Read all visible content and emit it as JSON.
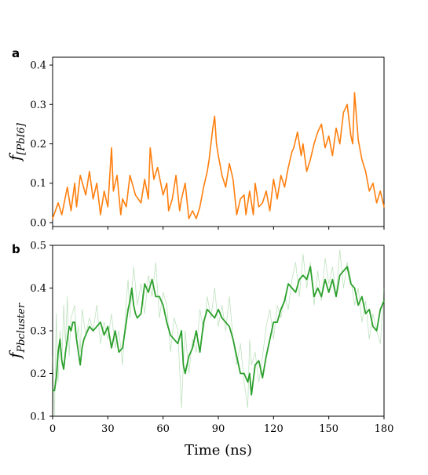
{
  "chart_data": [
    {
      "panel": "a",
      "type": "line",
      "ylabel_main": "f",
      "ylabel_sub": "[PbI6]",
      "xlim": [
        0,
        180
      ],
      "ylim": [
        -0.01,
        0.42
      ],
      "yticks": [
        0.0,
        0.1,
        0.2,
        0.3,
        0.4
      ],
      "ytick_labels": [
        "0.0",
        "0.1",
        "0.2",
        "0.3",
        "0.4"
      ],
      "grid": false,
      "series": [
        {
          "color": "#ff7f0e",
          "x": [
            0,
            3,
            5,
            8,
            10,
            12,
            13,
            15,
            18,
            20,
            22,
            24,
            26,
            28,
            30,
            32,
            33,
            35,
            37,
            38,
            40,
            42,
            45,
            48,
            50,
            52,
            53,
            55,
            57,
            60,
            62,
            63,
            65,
            67,
            69,
            70,
            72,
            74,
            76,
            78,
            80,
            82,
            84,
            85,
            87,
            88,
            89,
            90,
            92,
            94,
            96,
            98,
            100,
            102,
            104,
            105,
            107,
            109,
            110,
            112,
            114,
            116,
            118,
            120,
            122,
            124,
            126,
            128,
            130,
            131,
            133,
            135,
            136,
            138,
            140,
            142,
            144,
            146,
            148,
            150,
            152,
            154,
            156,
            158,
            160,
            161,
            162,
            163,
            164,
            166,
            168,
            170,
            172,
            174,
            176,
            178,
            180
          ],
          "y": [
            0.01,
            0.05,
            0.02,
            0.09,
            0.03,
            0.1,
            0.04,
            0.12,
            0.07,
            0.13,
            0.06,
            0.1,
            0.02,
            0.08,
            0.04,
            0.19,
            0.08,
            0.12,
            0.02,
            0.06,
            0.04,
            0.12,
            0.07,
            0.05,
            0.11,
            0.06,
            0.19,
            0.11,
            0.14,
            0.07,
            0.1,
            0.03,
            0.06,
            0.12,
            0.03,
            0.06,
            0.1,
            0.01,
            0.03,
            0.01,
            0.04,
            0.09,
            0.13,
            0.16,
            0.24,
            0.27,
            0.2,
            0.17,
            0.12,
            0.09,
            0.15,
            0.11,
            0.02,
            0.06,
            0.07,
            0.02,
            0.08,
            0.02,
            0.1,
            0.04,
            0.05,
            0.08,
            0.03,
            0.11,
            0.06,
            0.12,
            0.09,
            0.14,
            0.18,
            0.19,
            0.23,
            0.17,
            0.2,
            0.13,
            0.16,
            0.2,
            0.23,
            0.25,
            0.19,
            0.22,
            0.17,
            0.24,
            0.2,
            0.28,
            0.3,
            0.26,
            0.22,
            0.2,
            0.33,
            0.21,
            0.16,
            0.13,
            0.08,
            0.1,
            0.05,
            0.08,
            0.04
          ]
        }
      ]
    },
    {
      "panel": "b",
      "type": "line",
      "ylabel_main": "f",
      "ylabel_sub": "Pbcluster",
      "xlabel": "Time (ns)",
      "xlim": [
        0,
        180
      ],
      "xticks": [
        0,
        30,
        60,
        90,
        120,
        150,
        180
      ],
      "xtick_labels": [
        "0",
        "30",
        "60",
        "90",
        "120",
        "150",
        "180"
      ],
      "ylim": [
        0.1,
        0.5
      ],
      "yticks": [
        0.1,
        0.2,
        0.3,
        0.4,
        0.5
      ],
      "ytick_labels": [
        "0.1",
        "0.2",
        "0.3",
        "0.4",
        "0.5"
      ],
      "grid": false,
      "series": [
        {
          "color": "#2ca02c",
          "style": "raw-translucent",
          "x": [
            0,
            1,
            2,
            3,
            4,
            5,
            6,
            7,
            8,
            9,
            10,
            12,
            13,
            14,
            15,
            16,
            18,
            20,
            22,
            24,
            26,
            28,
            30,
            32,
            34,
            36,
            38,
            40,
            41,
            42,
            44,
            46,
            48,
            50,
            52,
            54,
            56,
            58,
            60,
            62,
            64,
            66,
            68,
            70,
            71,
            72,
            74,
            76,
            78,
            80,
            82,
            84,
            86,
            88,
            90,
            92,
            94,
            96,
            98,
            100,
            102,
            104,
            106,
            107,
            108,
            110,
            112,
            114,
            116,
            118,
            120,
            122,
            124,
            126,
            128,
            130,
            132,
            134,
            136,
            138,
            140,
            142,
            144,
            146,
            148,
            150,
            152,
            154,
            156,
            158,
            160,
            162,
            164,
            166,
            168,
            170,
            172,
            174,
            176,
            178,
            180
          ],
          "y": [
            0.24,
            0.1,
            0.34,
            0.18,
            0.3,
            0.22,
            0.36,
            0.27,
            0.38,
            0.24,
            0.33,
            0.36,
            0.28,
            0.31,
            0.25,
            0.35,
            0.29,
            0.33,
            0.3,
            0.36,
            0.27,
            0.32,
            0.28,
            0.34,
            0.26,
            0.3,
            0.22,
            0.37,
            0.42,
            0.33,
            0.45,
            0.36,
            0.41,
            0.34,
            0.43,
            0.38,
            0.46,
            0.33,
            0.39,
            0.36,
            0.25,
            0.33,
            0.3,
            0.12,
            0.22,
            0.3,
            0.2,
            0.28,
            0.25,
            0.35,
            0.3,
            0.38,
            0.33,
            0.4,
            0.31,
            0.36,
            0.3,
            0.38,
            0.28,
            0.22,
            0.27,
            0.18,
            0.12,
            0.28,
            0.22,
            0.25,
            0.18,
            0.24,
            0.31,
            0.35,
            0.28,
            0.36,
            0.33,
            0.38,
            0.35,
            0.42,
            0.46,
            0.38,
            0.48,
            0.4,
            0.46,
            0.36,
            0.44,
            0.37,
            0.47,
            0.41,
            0.45,
            0.38,
            0.49,
            0.4,
            0.46,
            0.42,
            0.36,
            0.4,
            0.32,
            0.37,
            0.28,
            0.34,
            0.3,
            0.27,
            0.4
          ]
        },
        {
          "color": "#2ca02c",
          "style": "smoothed",
          "x": [
            0,
            1,
            2,
            3,
            4,
            5,
            6,
            7,
            8,
            9,
            10,
            11,
            12,
            13,
            14,
            15,
            16,
            17,
            18,
            20,
            22,
            24,
            26,
            28,
            30,
            32,
            34,
            36,
            38,
            40,
            41,
            42,
            43,
            44,
            45,
            46,
            48,
            50,
            52,
            54,
            56,
            58,
            60,
            62,
            64,
            66,
            68,
            70,
            71,
            72,
            74,
            76,
            78,
            80,
            82,
            84,
            86,
            88,
            90,
            92,
            94,
            96,
            98,
            100,
            102,
            104,
            106,
            107,
            108,
            110,
            112,
            114,
            116,
            118,
            120,
            122,
            124,
            126,
            128,
            130,
            132,
            134,
            136,
            138,
            140,
            142,
            144,
            146,
            148,
            150,
            152,
            154,
            156,
            158,
            160,
            162,
            164,
            166,
            168,
            170,
            172,
            174,
            176,
            178,
            180
          ],
          "y": [
            0.16,
            0.16,
            0.19,
            0.25,
            0.28,
            0.23,
            0.21,
            0.25,
            0.28,
            0.31,
            0.3,
            0.32,
            0.32,
            0.28,
            0.25,
            0.22,
            0.26,
            0.28,
            0.29,
            0.31,
            0.3,
            0.31,
            0.32,
            0.29,
            0.31,
            0.26,
            0.3,
            0.25,
            0.26,
            0.32,
            0.35,
            0.37,
            0.4,
            0.36,
            0.34,
            0.33,
            0.34,
            0.41,
            0.39,
            0.42,
            0.38,
            0.38,
            0.36,
            0.32,
            0.29,
            0.28,
            0.27,
            0.3,
            0.22,
            0.2,
            0.24,
            0.26,
            0.3,
            0.25,
            0.32,
            0.35,
            0.34,
            0.33,
            0.35,
            0.33,
            0.32,
            0.31,
            0.28,
            0.24,
            0.2,
            0.2,
            0.18,
            0.2,
            0.15,
            0.22,
            0.23,
            0.19,
            0.24,
            0.28,
            0.32,
            0.32,
            0.35,
            0.37,
            0.41,
            0.4,
            0.39,
            0.42,
            0.43,
            0.42,
            0.45,
            0.38,
            0.4,
            0.38,
            0.42,
            0.39,
            0.42,
            0.38,
            0.43,
            0.44,
            0.45,
            0.41,
            0.4,
            0.36,
            0.38,
            0.34,
            0.35,
            0.31,
            0.3,
            0.35,
            0.37
          ]
        }
      ]
    }
  ]
}
